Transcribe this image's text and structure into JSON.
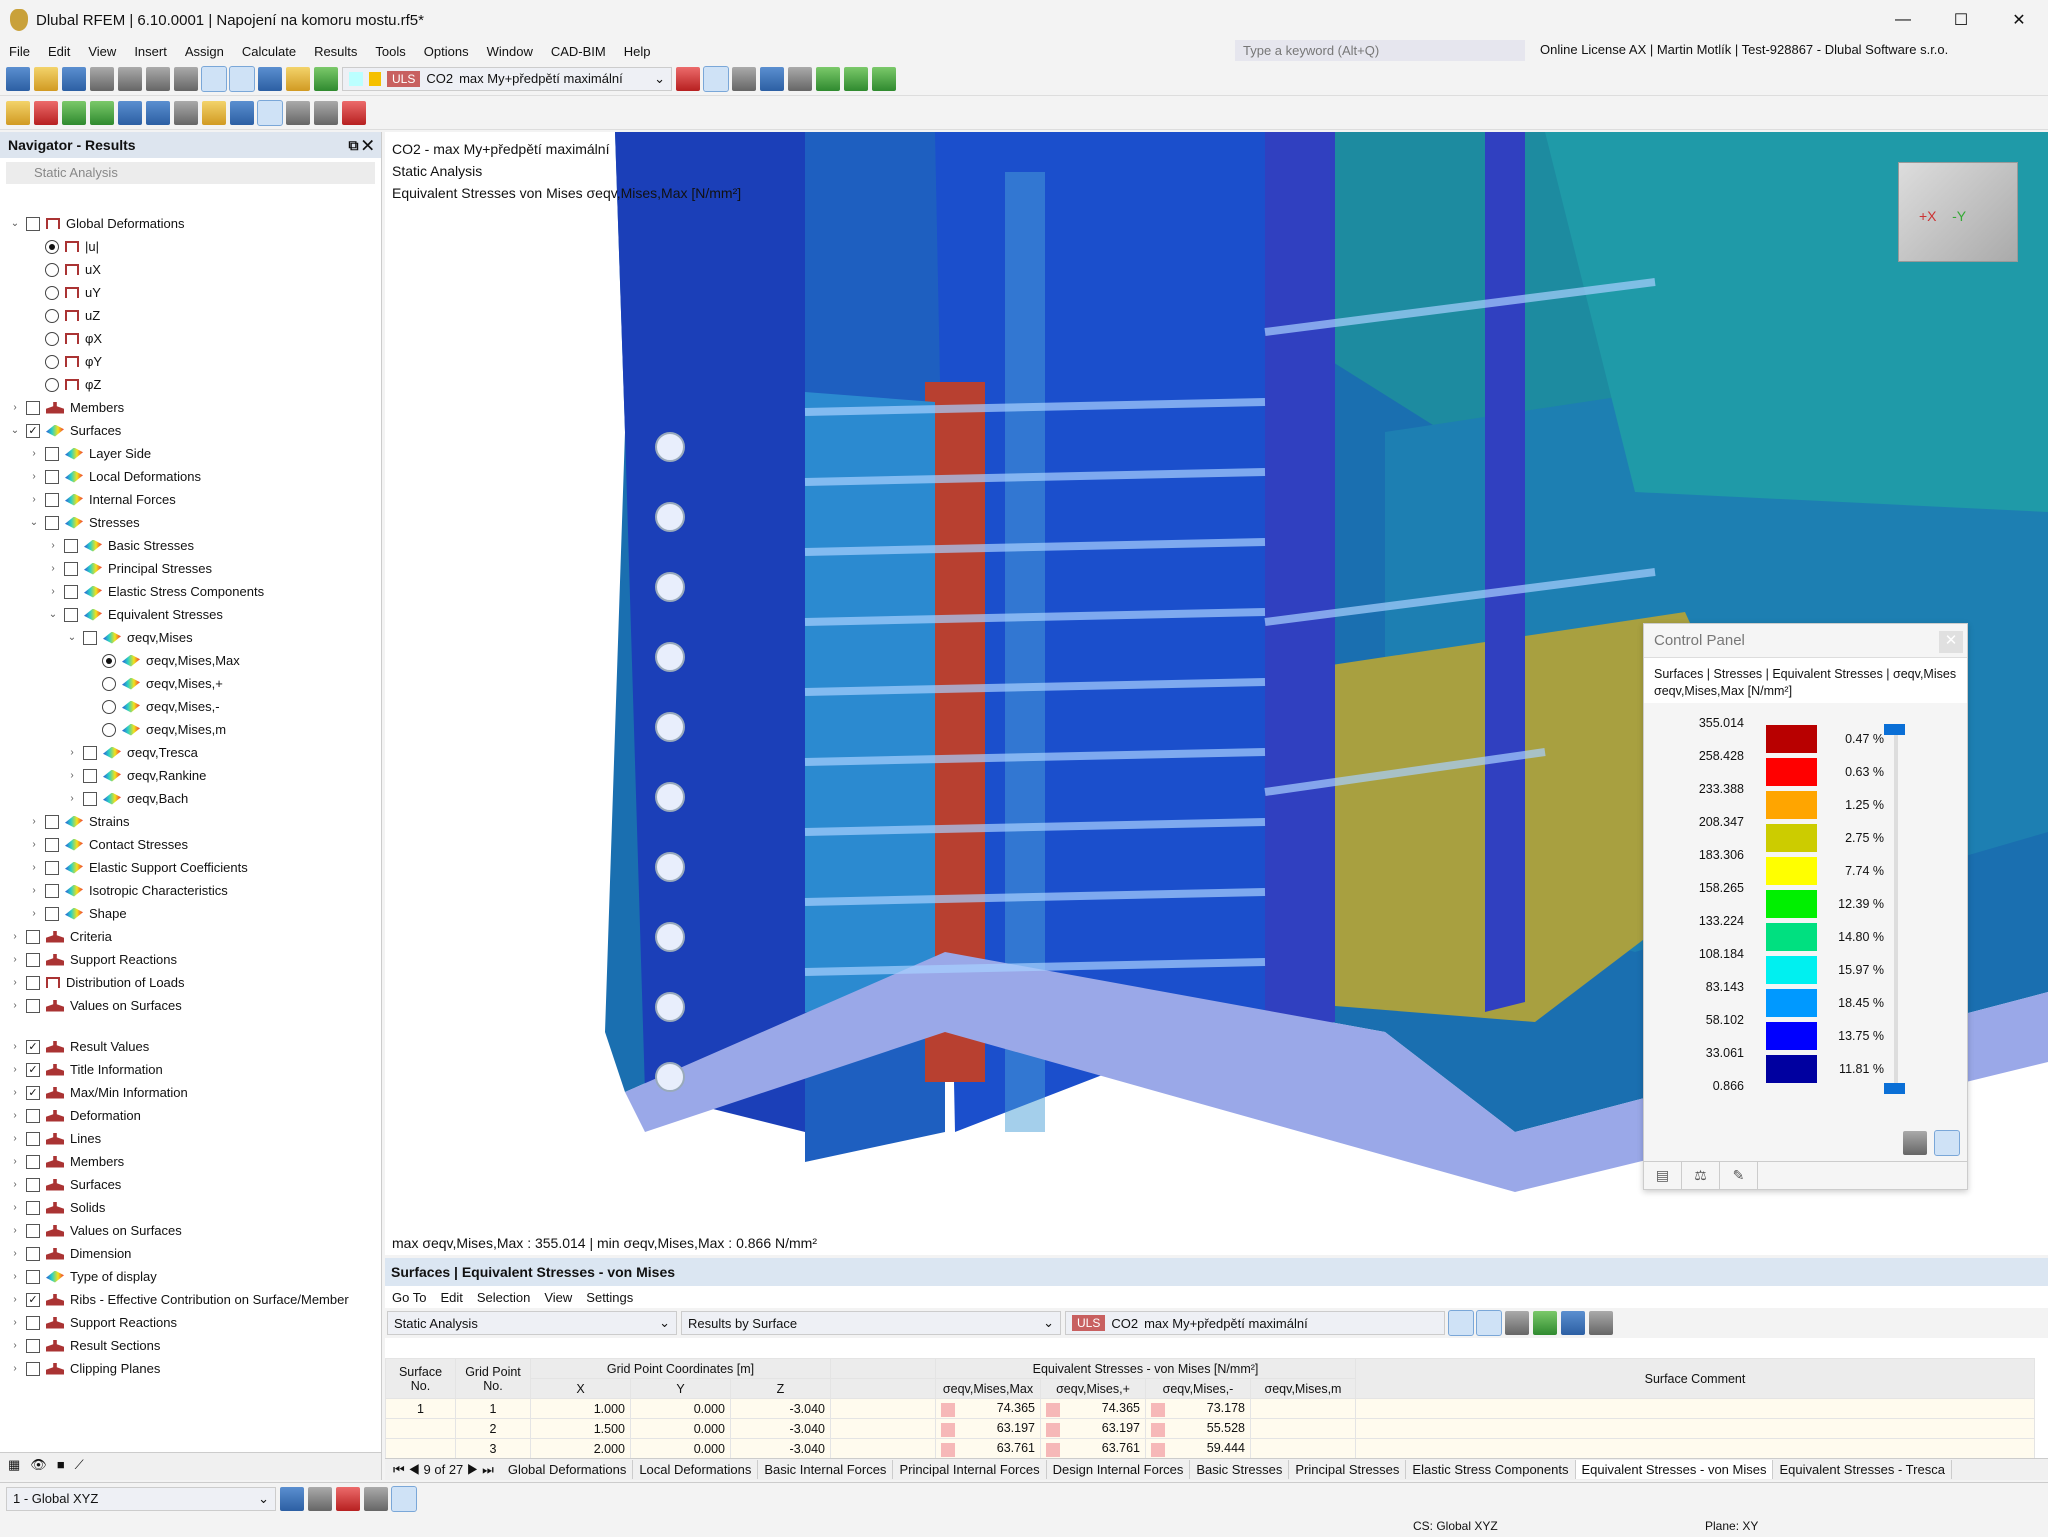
{
  "app": {
    "title": "Dlubal RFEM | 6.10.0001 | Napojení na komoru mostu.rf5*",
    "search_placeholder": "Type a keyword (Alt+Q)",
    "license": "Online License AX | Martin Motlík | Test-928867 - Dlubal Software s.r.o."
  },
  "menu": [
    "File",
    "Edit",
    "View",
    "Insert",
    "Assign",
    "Calculate",
    "Results",
    "Tools",
    "Options",
    "Window",
    "CAD-BIM",
    "Help"
  ],
  "toolbar": {
    "load_type": "ULS",
    "load_case": "CO2",
    "load_combo": "max My+předpětí maximální"
  },
  "navigator": {
    "title": "Navigator - Results",
    "analysis": "Static Analysis",
    "items": [
      {
        "l": 0,
        "e": "v",
        "t": "c",
        "c": false,
        "i": "def",
        "label": "Global Deformations"
      },
      {
        "l": 1,
        "t": "r",
        "c": true,
        "i": "def",
        "label": "|u|"
      },
      {
        "l": 1,
        "t": "r",
        "c": false,
        "i": "def",
        "label": "uX"
      },
      {
        "l": 1,
        "t": "r",
        "c": false,
        "i": "def",
        "label": "uY"
      },
      {
        "l": 1,
        "t": "r",
        "c": false,
        "i": "def",
        "label": "uZ"
      },
      {
        "l": 1,
        "t": "r",
        "c": false,
        "i": "def",
        "label": "φX"
      },
      {
        "l": 1,
        "t": "r",
        "c": false,
        "i": "def",
        "label": "φY"
      },
      {
        "l": 1,
        "t": "r",
        "c": false,
        "i": "def",
        "label": "φZ"
      },
      {
        "l": 0,
        "e": ">",
        "t": "c",
        "c": false,
        "i": "per",
        "label": "Members"
      },
      {
        "l": 0,
        "e": "v",
        "t": "c",
        "c": true,
        "i": "s",
        "label": "Surfaces"
      },
      {
        "l": 1,
        "e": ">",
        "t": "c",
        "c": false,
        "i": "s",
        "label": "Layer Side"
      },
      {
        "l": 1,
        "e": ">",
        "t": "c",
        "c": false,
        "i": "s",
        "label": "Local Deformations"
      },
      {
        "l": 1,
        "e": ">",
        "t": "c",
        "c": false,
        "i": "s",
        "label": "Internal Forces"
      },
      {
        "l": 1,
        "e": "v",
        "t": "c",
        "c": false,
        "i": "s",
        "label": "Stresses"
      },
      {
        "l": 2,
        "e": ">",
        "t": "c",
        "c": false,
        "i": "s",
        "label": "Basic Stresses"
      },
      {
        "l": 2,
        "e": ">",
        "t": "c",
        "c": false,
        "i": "s",
        "label": "Principal Stresses"
      },
      {
        "l": 2,
        "e": ">",
        "t": "c",
        "c": false,
        "i": "s",
        "label": "Elastic Stress Components"
      },
      {
        "l": 2,
        "e": "v",
        "t": "c",
        "c": false,
        "i": "s",
        "label": "Equivalent Stresses"
      },
      {
        "l": 3,
        "e": "v",
        "t": "c",
        "c": false,
        "i": "s",
        "label": "σeqv,Mises"
      },
      {
        "l": 4,
        "t": "r",
        "c": true,
        "i": "s",
        "label": "σeqv,Mises,Max"
      },
      {
        "l": 4,
        "t": "r",
        "c": false,
        "i": "s",
        "label": "σeqv,Mises,+"
      },
      {
        "l": 4,
        "t": "r",
        "c": false,
        "i": "s",
        "label": "σeqv,Mises,-"
      },
      {
        "l": 4,
        "t": "r",
        "c": false,
        "i": "s",
        "label": "σeqv,Mises,m"
      },
      {
        "l": 3,
        "e": ">",
        "t": "c",
        "c": false,
        "i": "s",
        "label": "σeqv,Tresca"
      },
      {
        "l": 3,
        "e": ">",
        "t": "c",
        "c": false,
        "i": "s",
        "label": "σeqv,Rankine"
      },
      {
        "l": 3,
        "e": ">",
        "t": "c",
        "c": false,
        "i": "s",
        "label": "σeqv,Bach"
      },
      {
        "l": 1,
        "e": ">",
        "t": "c",
        "c": false,
        "i": "s",
        "label": "Strains"
      },
      {
        "l": 1,
        "e": ">",
        "t": "c",
        "c": false,
        "i": "s",
        "label": "Contact Stresses"
      },
      {
        "l": 1,
        "e": ">",
        "t": "c",
        "c": false,
        "i": "s",
        "label": "Elastic Support Coefficients"
      },
      {
        "l": 1,
        "e": ">",
        "t": "c",
        "c": false,
        "i": "s",
        "label": "Isotropic Characteristics"
      },
      {
        "l": 1,
        "e": ">",
        "t": "c",
        "c": false,
        "i": "s",
        "label": "Shape"
      },
      {
        "l": 0,
        "e": ">",
        "t": "c",
        "c": false,
        "i": "per",
        "label": "Criteria"
      },
      {
        "l": 0,
        "e": ">",
        "t": "c",
        "c": false,
        "i": "per",
        "label": "Support Reactions"
      },
      {
        "l": 0,
        "e": ">",
        "t": "c",
        "c": false,
        "i": "def",
        "label": "Distribution of Loads"
      },
      {
        "l": 0,
        "e": ">",
        "t": "c",
        "c": false,
        "i": "per",
        "label": "Values on Surfaces"
      }
    ],
    "display_items": [
      {
        "l": 0,
        "e": ">",
        "t": "c",
        "c": true,
        "i": "per",
        "label": "Result Values"
      },
      {
        "l": 0,
        "e": ">",
        "t": "c",
        "c": true,
        "i": "per",
        "label": "Title Information"
      },
      {
        "l": 0,
        "e": ">",
        "t": "c",
        "c": true,
        "i": "per",
        "label": "Max/Min Information"
      },
      {
        "l": 0,
        "e": ">",
        "t": "c",
        "c": false,
        "i": "per",
        "label": "Deformation"
      },
      {
        "l": 0,
        "e": ">",
        "t": "c",
        "c": false,
        "i": "per",
        "label": "Lines"
      },
      {
        "l": 0,
        "e": ">",
        "t": "c",
        "c": false,
        "i": "per",
        "label": "Members"
      },
      {
        "l": 0,
        "e": ">",
        "t": "c",
        "c": false,
        "i": "per",
        "label": "Surfaces"
      },
      {
        "l": 0,
        "e": ">",
        "t": "c",
        "c": false,
        "i": "per",
        "label": "Solids"
      },
      {
        "l": 0,
        "e": ">",
        "t": "c",
        "c": false,
        "i": "per",
        "label": "Values on Surfaces"
      },
      {
        "l": 0,
        "e": ">",
        "t": "c",
        "c": false,
        "i": "per",
        "label": "Dimension"
      },
      {
        "l": 0,
        "e": ">",
        "t": "c",
        "c": false,
        "i": "s",
        "label": "Type of display"
      },
      {
        "l": 0,
        "e": ">",
        "t": "c",
        "c": true,
        "i": "per",
        "label": "Ribs - Effective Contribution on Surface/Member"
      },
      {
        "l": 0,
        "e": ">",
        "t": "c",
        "c": false,
        "i": "per",
        "label": "Support Reactions"
      },
      {
        "l": 0,
        "e": ">",
        "t": "c",
        "c": false,
        "i": "per",
        "label": "Result Sections"
      },
      {
        "l": 0,
        "e": ">",
        "t": "c",
        "c": false,
        "i": "per",
        "label": "Clipping Planes"
      }
    ]
  },
  "viewport": {
    "line1": "CO2 - max My+předpětí maximální",
    "line2": "Static Analysis",
    "line3": "Equivalent Stresses von Mises σeqv,Mises,Max [N/mm²]",
    "maxmin": "max σeqv,Mises,Max : 355.014 | min σeqv,Mises,Max : 0.866 N/mm²",
    "cube_x": "+X",
    "cube_y": "-Y"
  },
  "control_panel": {
    "title": "Control Panel",
    "path": "Surfaces | Stresses | Equivalent Stresses | σeqv,Mises",
    "quantity": "σeqv,Mises,Max [N/mm²]",
    "values": [
      "355.014",
      "258.428",
      "233.388",
      "208.347",
      "183.306",
      "158.265",
      "133.224",
      "108.184",
      "83.143",
      "58.102",
      "33.061",
      "0.866"
    ],
    "colors": [
      "#b80000",
      "#ff0000",
      "#ffa500",
      "#cccc00",
      "#ffff00",
      "#00f000",
      "#00e080",
      "#00f0f0",
      "#0099ff",
      "#0000ff",
      "#0000a0"
    ],
    "percents": [
      "0.47 %",
      "0.63 %",
      "1.25 %",
      "2.75 %",
      "7.74 %",
      "12.39 %",
      "14.80 %",
      "15.97 %",
      "18.45 %",
      "13.75 %",
      "11.81 %"
    ]
  },
  "table": {
    "title": "Surfaces | Equivalent Stresses - von Mises",
    "menu": [
      "Go To",
      "Edit",
      "Selection",
      "View",
      "Settings"
    ],
    "analysis": "Static Analysis",
    "mode": "Results by Surface",
    "headers": {
      "surface": "Surface No.",
      "grid": "Grid Point No.",
      "coords": "Grid Point Coordinates [m]",
      "x": "X",
      "y": "Y",
      "z": "Z",
      "eq": "Equivalent Stresses - von Mises [N/mm²]",
      "max": "σeqv,Mises,Max",
      "plus": "σeqv,Mises,+",
      "minus": "σeqv,Mises,-",
      "m": "σeqv,Mises,m",
      "comment": "Surface Comment"
    },
    "rows": [
      [
        "1",
        "1",
        "1.000",
        "0.000",
        "-3.040",
        "74.365",
        "74.365",
        "73.178"
      ],
      [
        "",
        "2",
        "1.500",
        "0.000",
        "-3.040",
        "63.197",
        "63.197",
        "55.528"
      ],
      [
        "",
        "3",
        "2.000",
        "0.000",
        "-3.040",
        "63.761",
        "63.761",
        "59.444"
      ]
    ],
    "pager": "9 of 27",
    "tabs": [
      "Global Deformations",
      "Local Deformations",
      "Basic Internal Forces",
      "Principal Internal Forces",
      "Design Internal Forces",
      "Basic Stresses",
      "Principal Stresses",
      "Elastic Stress Components",
      "Equivalent Stresses - von Mises",
      "Equivalent Stresses - Tresca"
    ],
    "active_tab": 8
  },
  "status": {
    "cs_combo": "1 - Global XYZ",
    "cs": "CS: Global XYZ",
    "plane": "Plane: XY"
  }
}
